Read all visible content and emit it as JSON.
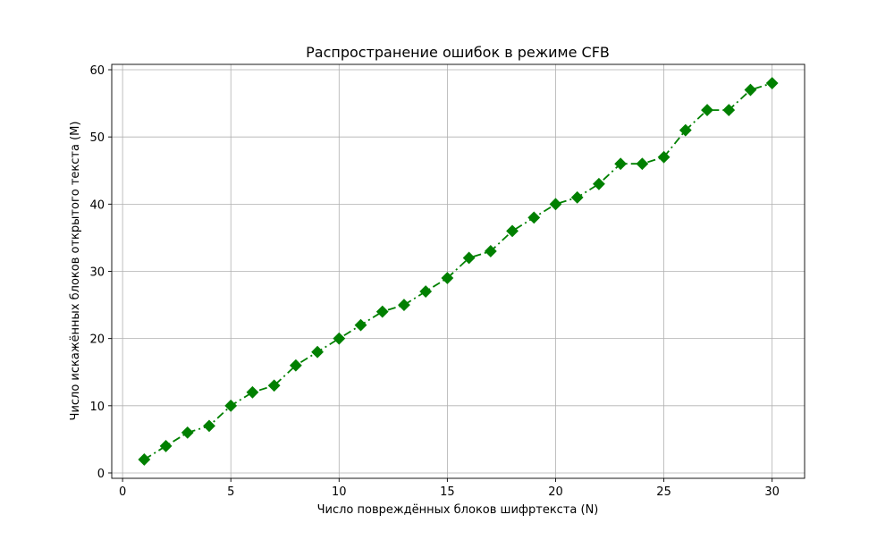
{
  "chart_data": {
    "type": "line",
    "title": "Распространение ошибок в режиме CFB",
    "xlabel": "Число повреждённых блоков шифртекста (N)",
    "ylabel": "Число искажённых блоков открытого текста (M)",
    "xlim": [
      -0.5,
      31.5
    ],
    "ylim": [
      -0.8,
      60.8
    ],
    "xticks": [
      0,
      5,
      10,
      15,
      20,
      25,
      30
    ],
    "yticks": [
      0,
      10,
      20,
      30,
      40,
      50,
      60
    ],
    "grid": true,
    "line_style": "dash-dot",
    "marker": "diamond",
    "color": "#008000",
    "x": [
      1,
      2,
      3,
      4,
      5,
      6,
      7,
      8,
      9,
      10,
      11,
      12,
      13,
      14,
      15,
      16,
      17,
      18,
      19,
      20,
      21,
      22,
      23,
      24,
      25,
      26,
      27,
      28,
      29,
      30
    ],
    "y": [
      2,
      4,
      6,
      7,
      10,
      12,
      13,
      16,
      18,
      20,
      22,
      24,
      25,
      27,
      29,
      32,
      33,
      36,
      38,
      40,
      41,
      43,
      46,
      46,
      47,
      51,
      54,
      54,
      57,
      58
    ]
  }
}
